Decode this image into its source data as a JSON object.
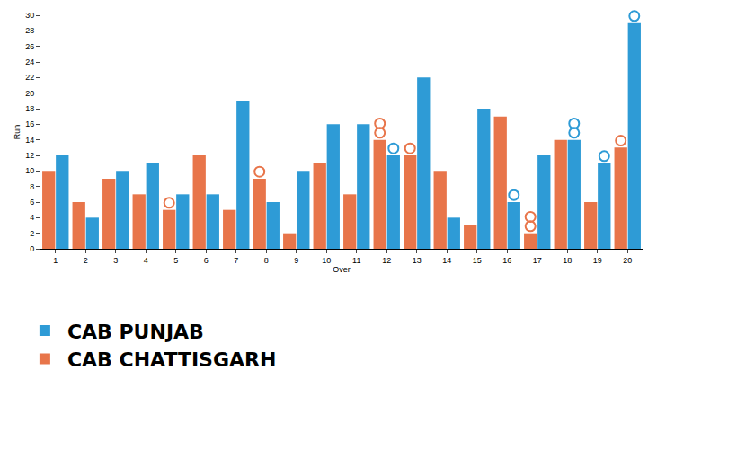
{
  "chart_data": {
    "type": "bar",
    "x_label": "Over",
    "y_label": "Run",
    "categories": [
      1,
      2,
      3,
      4,
      5,
      6,
      7,
      8,
      9,
      10,
      11,
      12,
      13,
      14,
      15,
      16,
      17,
      18,
      19,
      20
    ],
    "series": [
      {
        "name": "CAB CHATTISGARH",
        "color": "#e8754a",
        "values": [
          10,
          6,
          9,
          7,
          5,
          12,
          5,
          9,
          2,
          11,
          7,
          14,
          12,
          10,
          3,
          17,
          2,
          14,
          6,
          13
        ],
        "wickets": [
          0,
          0,
          0,
          0,
          1,
          0,
          0,
          1,
          0,
          0,
          0,
          2,
          1,
          0,
          0,
          0,
          2,
          0,
          0,
          1
        ]
      },
      {
        "name": "CAB PUNJAB",
        "color": "#2e9bd6",
        "values": [
          12,
          4,
          10,
          11,
          7,
          7,
          19,
          6,
          10,
          16,
          16,
          12,
          22,
          4,
          18,
          6,
          12,
          14,
          11,
          29
        ],
        "wickets": [
          0,
          0,
          0,
          0,
          0,
          0,
          0,
          0,
          0,
          0,
          0,
          1,
          0,
          0,
          0,
          1,
          0,
          2,
          1,
          1
        ]
      }
    ],
    "ylim": [
      0,
      30
    ],
    "yticks": [
      0,
      2,
      4,
      6,
      8,
      10,
      12,
      14,
      16,
      18,
      20,
      22,
      24,
      26,
      28,
      30
    ],
    "grid": false,
    "legend": "bottom left"
  }
}
